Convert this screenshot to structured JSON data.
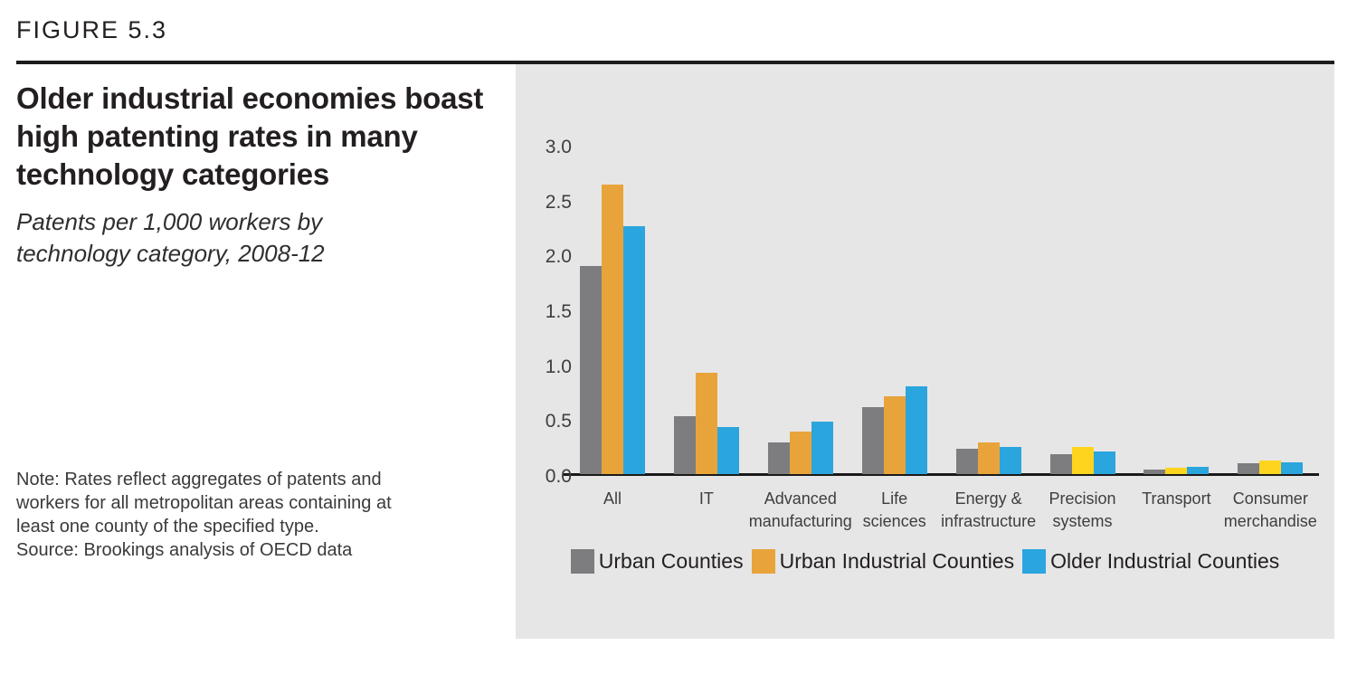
{
  "figure_label": "FIGURE 5.3",
  "title": "Older industrial economies boast high patenting rates in many technology categories",
  "subtitle": "Patents per 1,000 workers by technology category, 2008-12",
  "note": "Note: Rates reflect aggregates of patents and workers for all metropolitan areas containing at least one county of the specified type.",
  "source": "Source: Brookings analysis of OECD data",
  "colors": {
    "panel_background": "#e6e6e6",
    "rule": "#1c1c1c",
    "axis": "#1a1a1a",
    "gray_series": "#7d7d7f",
    "orange_series": "#e8a43a",
    "blue_series": "#2ba5de",
    "yellow_variant": "#ffd41e"
  },
  "chart_data": {
    "type": "bar",
    "title": "Older industrial economies boast high patenting rates in many technology categories",
    "subtitle": "Patents per 1,000 workers by technology category, 2008-12",
    "xlabel": "",
    "ylabel": "",
    "ylim": [
      0,
      3.0
    ],
    "ytick_step": 0.5,
    "grid": false,
    "legend_position": "bottom",
    "categories": [
      "All",
      "IT",
      "Advanced\nmanufacturing",
      "Life\nsciences",
      "Energy &\ninfrastructure",
      "Precision\nsystems",
      "Transport",
      "Consumer\nmerchandise"
    ],
    "series": [
      {
        "name": "Urban Counties",
        "color": "#7d7d7f",
        "values": [
          1.9,
          0.53,
          0.29,
          0.61,
          0.23,
          0.18,
          0.04,
          0.1
        ]
      },
      {
        "name": "Urban Industrial Counties",
        "color": "#e8a43a",
        "bar_colors": [
          "#e8a43a",
          "#e8a43a",
          "#e8a43a",
          "#e8a43a",
          "#e8a43a",
          "#ffd41e",
          "#ffd41e",
          "#ffd41e"
        ],
        "values": [
          2.64,
          0.92,
          0.39,
          0.71,
          0.29,
          0.25,
          0.06,
          0.12
        ]
      },
      {
        "name": "Older Industrial Counties",
        "color": "#2ba5de",
        "values": [
          2.26,
          0.43,
          0.48,
          0.8,
          0.25,
          0.21,
          0.07,
          0.11
        ]
      }
    ]
  }
}
